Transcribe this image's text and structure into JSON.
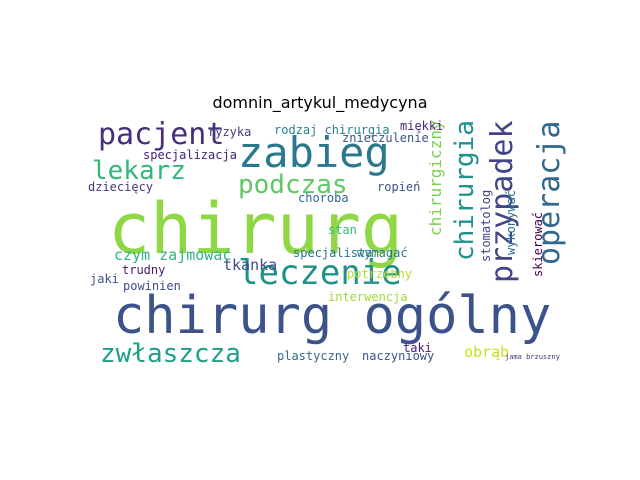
{
  "chart_data": {
    "type": "wordcloud",
    "title": "domnin_artykul_medycyna",
    "background": "#ffffff",
    "words": [
      {
        "text": "chirurg",
        "color": "#8fd744",
        "vertical": false
      },
      {
        "text": "chirurg ogólny",
        "color": "#3b528b",
        "vertical": false
      },
      {
        "text": "zabieg",
        "color": "#2a788e",
        "vertical": false
      },
      {
        "text": "leczenie",
        "color": "#21918c",
        "vertical": false
      },
      {
        "text": "pacjent",
        "color": "#472d7b",
        "vertical": false
      },
      {
        "text": "operacja",
        "color": "#31688e",
        "vertical": true
      },
      {
        "text": "przypadek",
        "color": "#414487",
        "vertical": true
      },
      {
        "text": "zwłaszcza",
        "color": "#1f9e89",
        "vertical": false
      },
      {
        "text": "lekarz",
        "color": "#35b779",
        "vertical": false
      },
      {
        "text": "podczas",
        "color": "#5ec962",
        "vertical": false
      },
      {
        "text": "chirurgia",
        "color": "#21918c",
        "vertical": true
      },
      {
        "text": "chirurgiczny",
        "color": "#7ad151",
        "vertical": true
      },
      {
        "text": "czym zajmować",
        "color": "#2fb47c",
        "vertical": false
      },
      {
        "text": "tkanka",
        "color": "#3e4a89",
        "vertical": false
      },
      {
        "text": "rodzaj chirurgia",
        "color": "#26828e",
        "vertical": false
      },
      {
        "text": "specjalizacja",
        "color": "#482173",
        "vertical": false
      },
      {
        "text": "ryzyka",
        "color": "#433e85",
        "vertical": false
      },
      {
        "text": "miękki",
        "color": "#482878",
        "vertical": false
      },
      {
        "text": "znieczulenie",
        "color": "#3b528b",
        "vertical": false
      },
      {
        "text": "dziecięcy",
        "color": "#443983",
        "vertical": false
      },
      {
        "text": "choroba",
        "color": "#31688e",
        "vertical": false
      },
      {
        "text": "ropień",
        "color": "#3b528b",
        "vertical": false
      },
      {
        "text": "stomatolog",
        "color": "#404688",
        "vertical": true
      },
      {
        "text": "wykonywać",
        "color": "#2c728e",
        "vertical": true
      },
      {
        "text": "skierować",
        "color": "#440154",
        "vertical": true
      },
      {
        "text": "stan",
        "color": "#35b779",
        "vertical": false
      },
      {
        "text": "specjalista",
        "color": "#2a788e",
        "vertical": false
      },
      {
        "text": "wymagać",
        "color": "#2a788e",
        "vertical": false
      },
      {
        "text": "trudny",
        "color": "#481a6c",
        "vertical": false
      },
      {
        "text": "jaki",
        "color": "#3b528b",
        "vertical": false
      },
      {
        "text": "powinien",
        "color": "#3e4a89",
        "vertical": false
      },
      {
        "text": "potrzebny",
        "color": "#b5de2b",
        "vertical": false
      },
      {
        "text": "interwencja",
        "color": "#a0da39",
        "vertical": false
      },
      {
        "text": "taki",
        "color": "#481f70",
        "vertical": false
      },
      {
        "text": "plastyczny",
        "color": "#2f6b8e",
        "vertical": false
      },
      {
        "text": "naczyniowy",
        "color": "#3b528b",
        "vertical": false
      },
      {
        "text": "obrąb",
        "color": "#c8e020",
        "vertical": false
      },
      {
        "text": "jama brzuszny",
        "color": "#472d7b",
        "vertical": false
      }
    ]
  }
}
